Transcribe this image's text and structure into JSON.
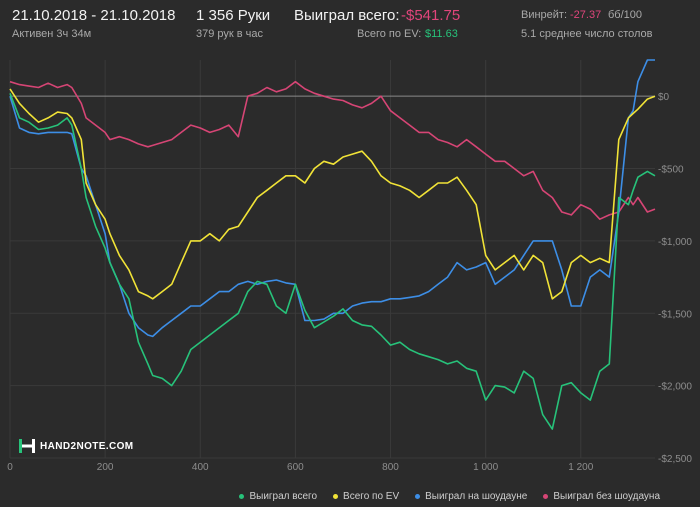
{
  "header": {
    "date_range": "21.10.2018 - 21.10.2018",
    "active": "Активен 3ч 34м",
    "hands": "1 356 Руки",
    "hands_per_hour": "379 рук в час",
    "won_total_label": "Выиграл всего:",
    "won_total_value": "-$541.75",
    "ev_label": "Всего по EV:",
    "ev_value": "$11.63",
    "winrate_label": "Винрейт:",
    "winrate_value": "-27.37",
    "winrate_unit": "бб/100",
    "avg_tables": "5.1 среднее число столов"
  },
  "colors": {
    "background": "#2b2b2b",
    "grid": "#3a3a3a",
    "zero_line": "#8a8a8a",
    "negative": "#e0457b",
    "positive": "#27c27a",
    "total": "#27c27a",
    "ev": "#f1e337",
    "showdown": "#3d8ee6",
    "no_showdown": "#d64575"
  },
  "brand": {
    "logo_text": "HAND2NOTE.COM",
    "logo_icon": "h2n-logo-icon"
  },
  "chart_data": {
    "type": "line",
    "title": "",
    "xlabel": "",
    "ylabel": "",
    "xlim": [
      0,
      1356
    ],
    "ylim": [
      -2500,
      250
    ],
    "x_ticks": [
      0,
      200,
      400,
      600,
      800,
      1000,
      1200
    ],
    "x_tick_labels": [
      "0",
      "200",
      "400",
      "600",
      "800",
      "1 000",
      "1 200"
    ],
    "y_ticks": [
      0,
      -500,
      -1000,
      -1500,
      -2000,
      -2500
    ],
    "y_tick_labels": [
      "$0",
      "-$500",
      "-$1,000",
      "-$1,500",
      "-$2,000",
      "-$2,500"
    ],
    "grid": true,
    "legend_position": "bottom-right",
    "series": [
      {
        "name": "Выиграл всего",
        "color": "#27c27a",
        "x": [
          0,
          20,
          40,
          60,
          80,
          100,
          120,
          130,
          150,
          160,
          180,
          200,
          210,
          230,
          250,
          270,
          290,
          300,
          320,
          340,
          360,
          380,
          400,
          420,
          440,
          460,
          480,
          500,
          520,
          540,
          560,
          580,
          600,
          620,
          640,
          660,
          680,
          700,
          720,
          740,
          760,
          780,
          800,
          820,
          840,
          860,
          880,
          900,
          920,
          940,
          960,
          980,
          1000,
          1020,
          1040,
          1060,
          1080,
          1100,
          1120,
          1140,
          1160,
          1180,
          1200,
          1220,
          1240,
          1260,
          1280,
          1300,
          1310,
          1320,
          1340,
          1356
        ],
        "y": [
          20,
          -150,
          -180,
          -230,
          -220,
          -200,
          -150,
          -200,
          -500,
          -700,
          -900,
          -1050,
          -1150,
          -1300,
          -1400,
          -1700,
          -1850,
          -1930,
          -1950,
          -2000,
          -1900,
          -1750,
          -1700,
          -1650,
          -1600,
          -1550,
          -1500,
          -1350,
          -1280,
          -1300,
          -1450,
          -1500,
          -1300,
          -1480,
          -1600,
          -1560,
          -1520,
          -1470,
          -1550,
          -1580,
          -1590,
          -1650,
          -1720,
          -1700,
          -1750,
          -1780,
          -1800,
          -1820,
          -1850,
          -1830,
          -1880,
          -1900,
          -2100,
          -2000,
          -2010,
          -2050,
          -1900,
          -1950,
          -2200,
          -2300,
          -2000,
          -1980,
          -2050,
          -2100,
          -1900,
          -1850,
          -700,
          -750,
          -650,
          -560,
          -520,
          -550
        ]
      },
      {
        "name": "Всего по EV",
        "color": "#f1e337",
        "x": [
          0,
          20,
          40,
          60,
          80,
          100,
          120,
          130,
          150,
          160,
          180,
          200,
          210,
          230,
          250,
          270,
          290,
          300,
          320,
          340,
          360,
          380,
          400,
          420,
          440,
          460,
          480,
          500,
          520,
          540,
          560,
          580,
          600,
          620,
          640,
          660,
          680,
          700,
          720,
          740,
          760,
          780,
          800,
          820,
          840,
          860,
          880,
          900,
          920,
          940,
          960,
          980,
          1000,
          1020,
          1040,
          1060,
          1080,
          1100,
          1120,
          1140,
          1160,
          1180,
          1200,
          1220,
          1240,
          1260,
          1280,
          1300,
          1310,
          1320,
          1340,
          1356
        ],
        "y": [
          50,
          -50,
          -120,
          -180,
          -150,
          -110,
          -120,
          -150,
          -300,
          -600,
          -750,
          -850,
          -950,
          -1100,
          -1200,
          -1350,
          -1380,
          -1400,
          -1350,
          -1300,
          -1150,
          -1000,
          -1000,
          -950,
          -1000,
          -920,
          -900,
          -800,
          -700,
          -650,
          -600,
          -550,
          -550,
          -600,
          -500,
          -450,
          -470,
          -420,
          -400,
          -380,
          -450,
          -550,
          -600,
          -620,
          -650,
          -700,
          -650,
          -600,
          -600,
          -560,
          -650,
          -750,
          -1100,
          -1200,
          -1150,
          -1100,
          -1200,
          -1100,
          -1150,
          -1400,
          -1350,
          -1150,
          -1100,
          -1150,
          -1120,
          -1150,
          -300,
          -150,
          -120,
          -90,
          -20,
          0
        ]
      },
      {
        "name": "Выиграл на шоудауне",
        "color": "#3d8ee6",
        "x": [
          0,
          20,
          40,
          60,
          80,
          100,
          120,
          130,
          150,
          160,
          180,
          200,
          210,
          230,
          250,
          270,
          290,
          300,
          320,
          340,
          360,
          380,
          400,
          420,
          440,
          460,
          480,
          500,
          520,
          540,
          560,
          580,
          600,
          620,
          640,
          660,
          680,
          700,
          720,
          740,
          760,
          780,
          800,
          820,
          840,
          860,
          880,
          900,
          920,
          940,
          960,
          980,
          1000,
          1020,
          1040,
          1060,
          1080,
          1100,
          1120,
          1140,
          1160,
          1180,
          1200,
          1220,
          1240,
          1260,
          1280,
          1300,
          1310,
          1320,
          1340,
          1356
        ],
        "y": [
          0,
          -220,
          -250,
          -260,
          -250,
          -250,
          -250,
          -260,
          -500,
          -550,
          -750,
          -950,
          -1150,
          -1300,
          -1500,
          -1600,
          -1650,
          -1660,
          -1600,
          -1550,
          -1500,
          -1450,
          -1450,
          -1400,
          -1350,
          -1350,
          -1300,
          -1280,
          -1300,
          -1280,
          -1270,
          -1290,
          -1300,
          -1550,
          -1550,
          -1540,
          -1500,
          -1500,
          -1450,
          -1430,
          -1420,
          -1420,
          -1400,
          -1400,
          -1390,
          -1380,
          -1350,
          -1300,
          -1250,
          -1150,
          -1200,
          -1180,
          -1150,
          -1300,
          -1250,
          -1200,
          -1100,
          -1000,
          -1000,
          -1000,
          -1200,
          -1450,
          -1450,
          -1250,
          -1200,
          -1250,
          -800,
          -150,
          -100,
          100,
          250,
          250
        ]
      },
      {
        "name": "Выиграл без шоудауна",
        "color": "#d64575",
        "x": [
          0,
          20,
          40,
          60,
          80,
          100,
          120,
          130,
          150,
          160,
          180,
          200,
          210,
          230,
          250,
          270,
          290,
          300,
          320,
          340,
          360,
          380,
          400,
          420,
          440,
          460,
          480,
          500,
          520,
          540,
          560,
          580,
          600,
          620,
          640,
          660,
          680,
          700,
          720,
          740,
          760,
          780,
          800,
          820,
          840,
          860,
          880,
          900,
          920,
          940,
          960,
          980,
          1000,
          1020,
          1040,
          1060,
          1080,
          1100,
          1120,
          1140,
          1160,
          1180,
          1200,
          1220,
          1240,
          1260,
          1280,
          1300,
          1310,
          1320,
          1340,
          1356
        ],
        "y": [
          100,
          80,
          70,
          60,
          90,
          60,
          80,
          60,
          -50,
          -150,
          -200,
          -250,
          -300,
          -280,
          -300,
          -330,
          -350,
          -340,
          -320,
          -300,
          -250,
          -200,
          -220,
          -250,
          -230,
          -200,
          -280,
          0,
          20,
          60,
          30,
          50,
          100,
          50,
          20,
          0,
          -20,
          -30,
          -60,
          -80,
          -50,
          0,
          -100,
          -150,
          -200,
          -250,
          -250,
          -300,
          -320,
          -350,
          -300,
          -350,
          -400,
          -450,
          -450,
          -500,
          -550,
          -520,
          -650,
          -700,
          -800,
          -820,
          -750,
          -780,
          -850,
          -820,
          -800,
          -700,
          -750,
          -700,
          -800,
          -780
        ]
      }
    ]
  }
}
